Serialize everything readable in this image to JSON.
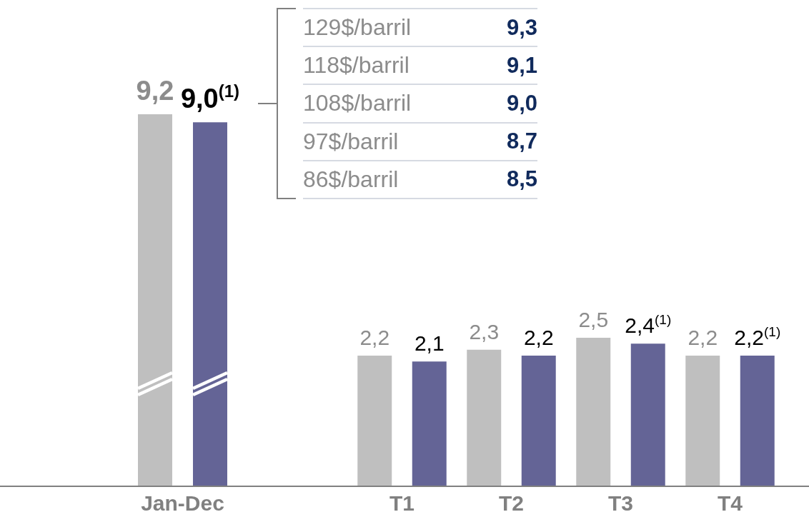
{
  "chart_data": [
    {
      "type": "bar",
      "categories": [
        "Jan-Dec"
      ],
      "series": [
        {
          "color": "#bfbfbf",
          "values": [
            9.2
          ],
          "value_labels": [
            "9,2"
          ]
        },
        {
          "color": "#646496",
          "values": [
            9.0
          ],
          "value_labels": [
            "9,0$^{(1)}$"
          ]
        }
      ],
      "tick_labels": "x"
    },
    {
      "type": "bar",
      "categories": [
        "T1",
        "T2",
        "T3",
        "T4"
      ],
      "series": [
        {
          "color": "#bfbfbf",
          "values": [
            2.2,
            2.3,
            2.5,
            2.2
          ],
          "value_labels": [
            "2,2",
            "2,3",
            "2,5",
            "2,2"
          ]
        },
        {
          "color": "#646496",
          "values": [
            2.1,
            2.2,
            2.4,
            2.2
          ],
          "value_labels": [
            "2,1",
            "2,2",
            "2,4$^{(1)}$",
            "2,2$^{(1)}$"
          ]
        }
      ],
      "tick_labels": "x"
    },
    {
      "type": "other",
      "categories": [
        "129$/barril",
        "118$/barril",
        "108$/barril",
        "97$/barril",
        "86$/barril"
      ],
      "value_labels": [
        "9,3",
        "9,1",
        "9,0",
        "8,7",
        "8,5"
      ]
    }
  ]
}
